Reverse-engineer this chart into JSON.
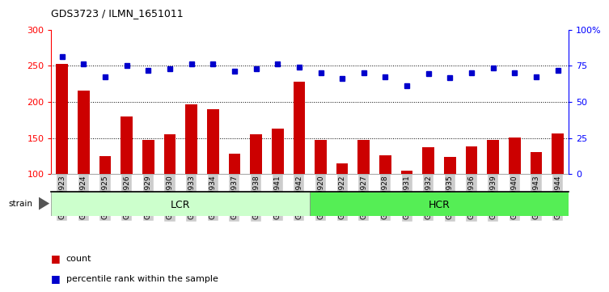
{
  "title": "GDS3723 / ILMN_1651011",
  "samples": [
    "GSM429923",
    "GSM429924",
    "GSM429925",
    "GSM429926",
    "GSM429929",
    "GSM429930",
    "GSM429933",
    "GSM429934",
    "GSM429937",
    "GSM429938",
    "GSM429941",
    "GSM429942",
    "GSM429920",
    "GSM429922",
    "GSM429927",
    "GSM429928",
    "GSM429931",
    "GSM429932",
    "GSM429935",
    "GSM429936",
    "GSM429939",
    "GSM429940",
    "GSM429943",
    "GSM429944"
  ],
  "counts": [
    252,
    215,
    125,
    180,
    147,
    155,
    196,
    190,
    128,
    155,
    163,
    228,
    147,
    115,
    147,
    126,
    105,
    137,
    124,
    138,
    147,
    151,
    130,
    156
  ],
  "percentile_left_scale": [
    262,
    253,
    235,
    250,
    243,
    246,
    252,
    252,
    242,
    246,
    252,
    248,
    240,
    232,
    240,
    235,
    222,
    239,
    233,
    240,
    247,
    240,
    235,
    244
  ],
  "lcr_count": 12,
  "hcr_count": 12,
  "lcr_color": "#ccffcc",
  "hcr_color": "#55ee55",
  "bar_color": "#cc0000",
  "dot_color": "#0000cc",
  "ylim": [
    100,
    300
  ],
  "yticks_left": [
    100,
    150,
    200,
    250,
    300
  ],
  "yticks_right_labels": [
    "0",
    "25",
    "50",
    "75",
    "100%"
  ],
  "grid_values": [
    150,
    200,
    250
  ],
  "xticklabel_bg": "#cccccc",
  "background_color": "#ffffff",
  "title_fontsize": 9,
  "tick_fontsize": 6.5,
  "bar_width": 0.55
}
